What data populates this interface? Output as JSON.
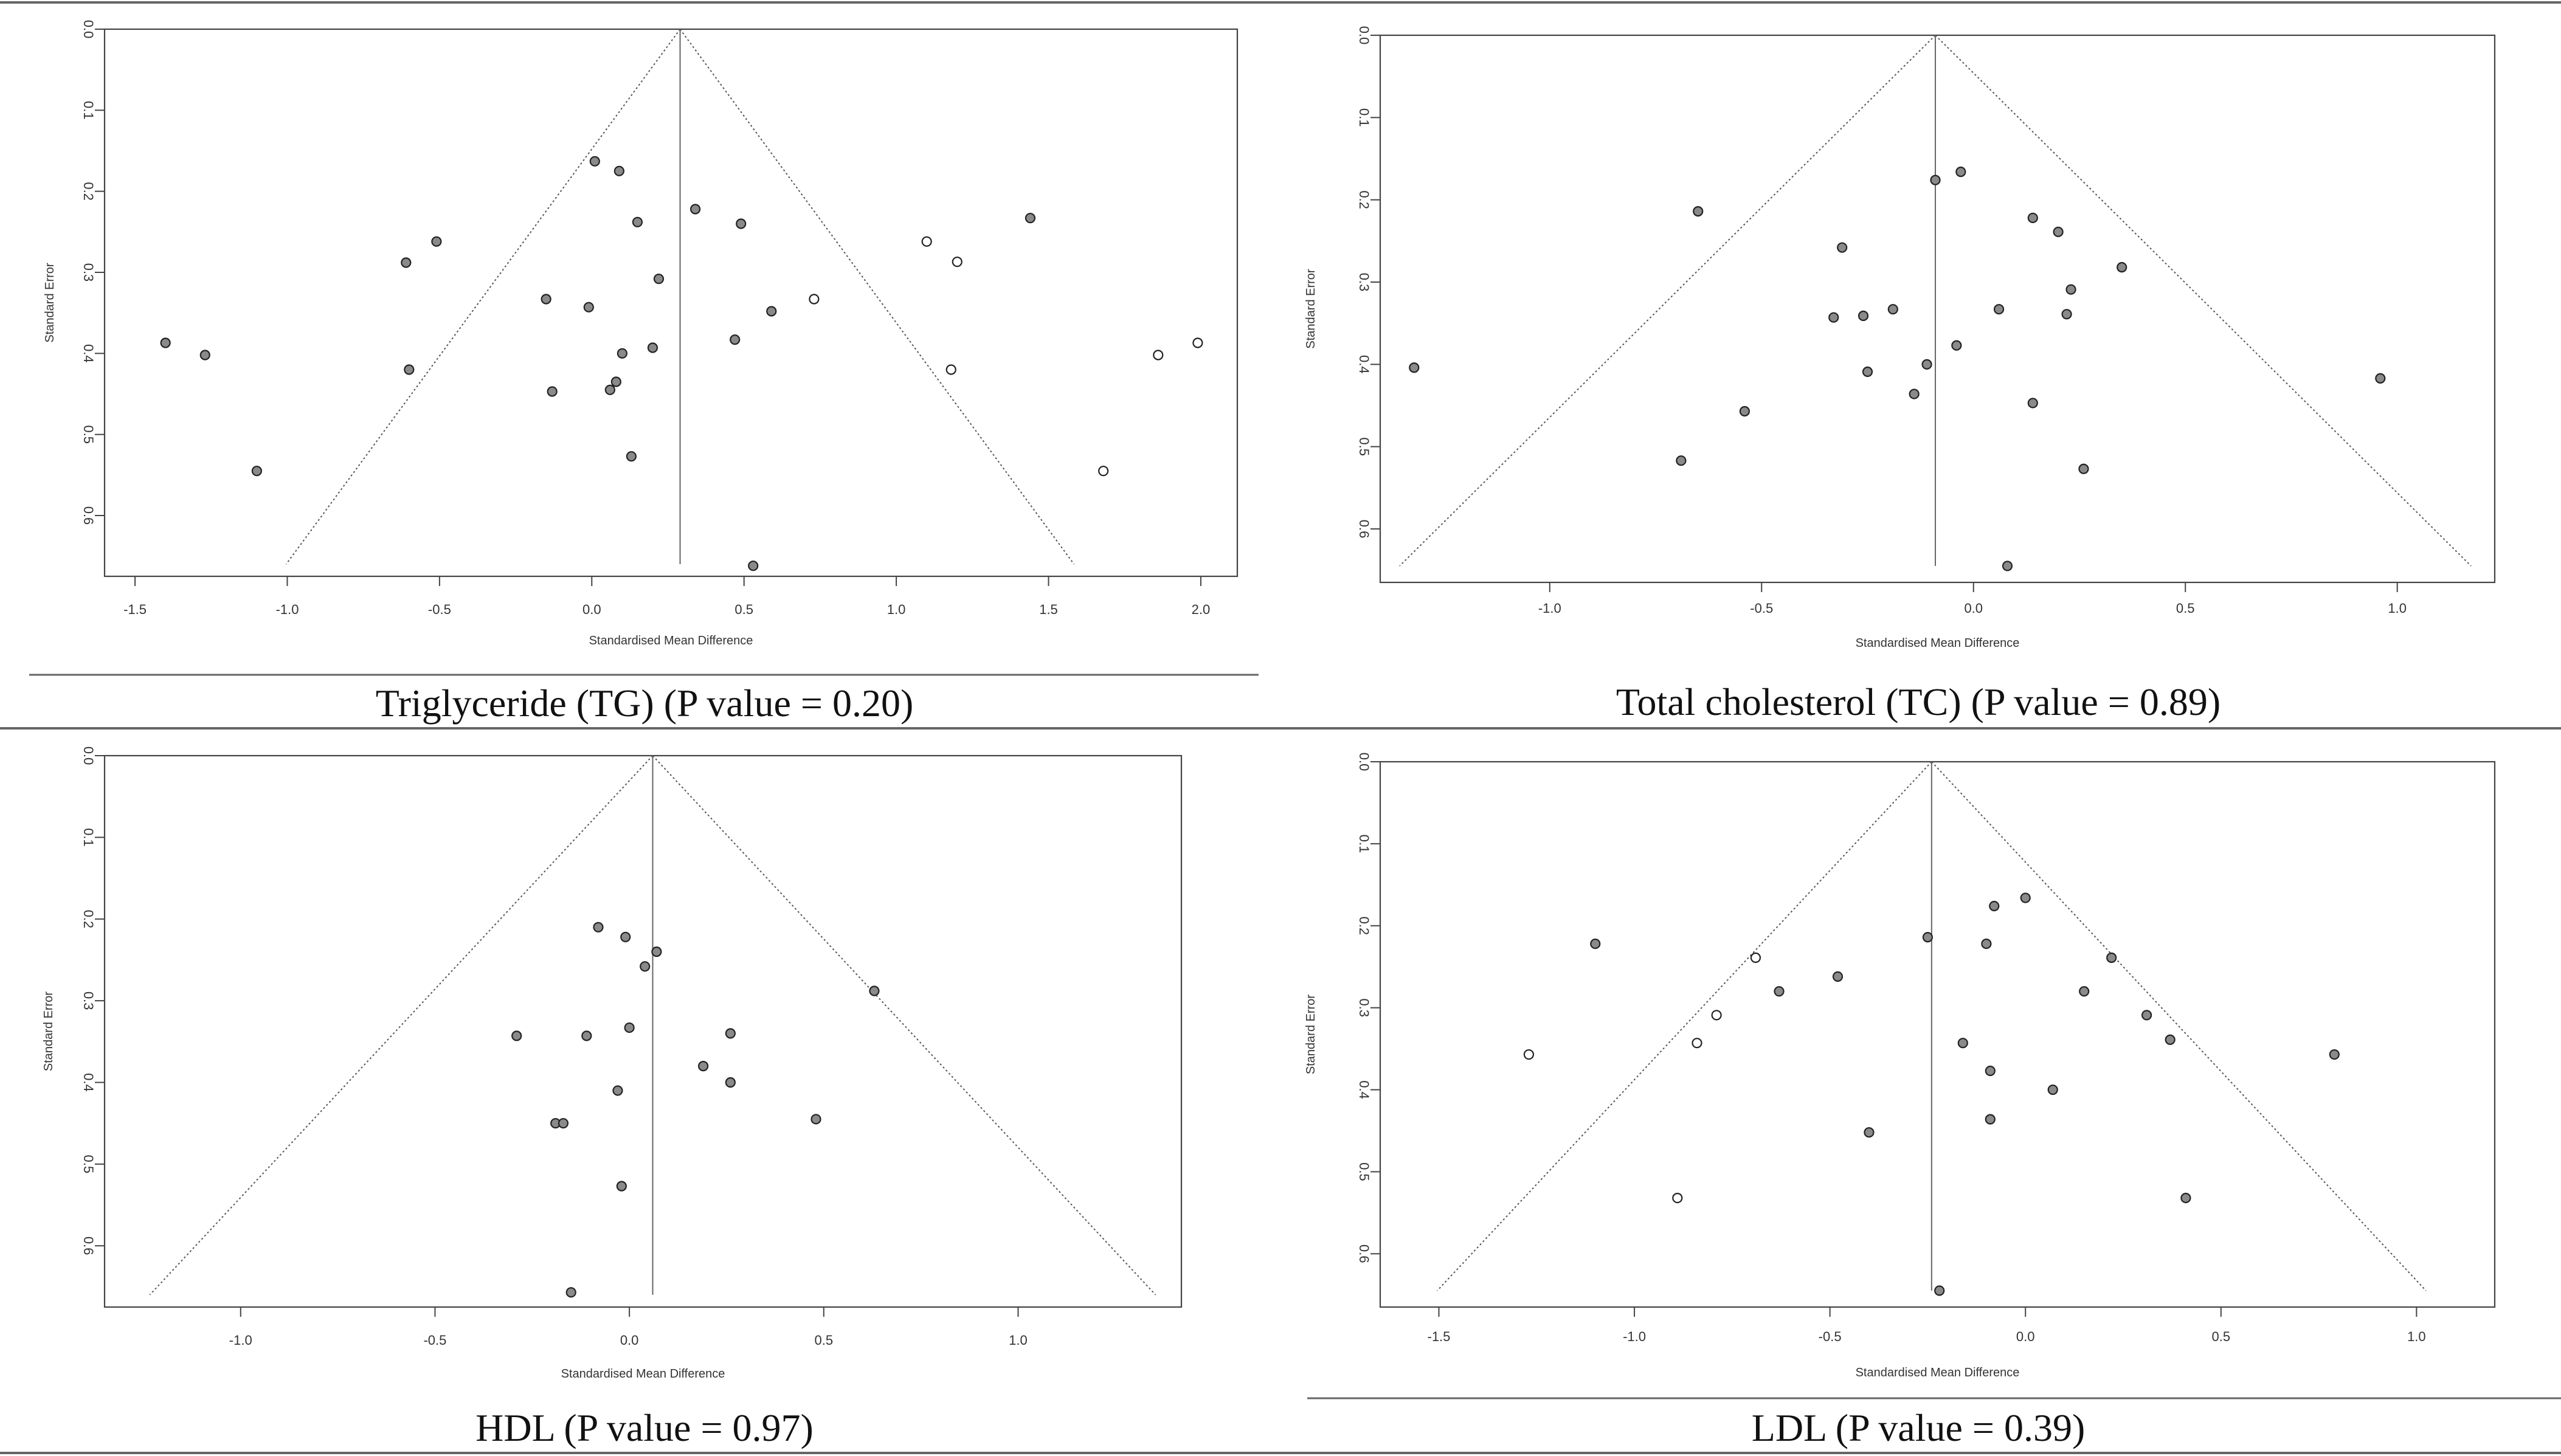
{
  "panels": [
    {
      "caption": "Triglyceride (TG) (P value = 0.20)",
      "chart_data": {
        "type": "scatter",
        "subtype": "funnel",
        "xlabel": "Standardised Mean Difference",
        "ylabel": "Standard Error",
        "xlim": [
          -1.6,
          2.12
        ],
        "ylim": [
          0,
          0.675
        ],
        "y_reversed": true,
        "xticks": [
          -1.5,
          -1.0,
          -0.5,
          0.0,
          0.5,
          1.0,
          1.5,
          2.0
        ],
        "xtick_labels": [
          "-1.5",
          "-1.0",
          "-0.5",
          "0.0",
          "0.5",
          "1.0",
          "1.5",
          "2.0"
        ],
        "yticks": [
          0.0,
          0.1,
          0.2,
          0.3,
          0.4,
          0.5,
          0.6
        ],
        "ytick_labels": [
          "0.0",
          "0.1",
          "0.2",
          "0.3",
          "0.4",
          "0.5",
          "0.6"
        ],
        "center": 0.29,
        "funnel_max_se": 0.66,
        "grid": false,
        "series": [
          {
            "filled": true,
            "points": [
              [
                -1.4,
                0.387
              ],
              [
                -1.27,
                0.402
              ],
              [
                -1.1,
                0.545
              ],
              [
                -0.61,
                0.288
              ],
              [
                -0.6,
                0.42
              ],
              [
                -0.51,
                0.262
              ],
              [
                0.01,
                0.163
              ],
              [
                0.09,
                0.175
              ],
              [
                0.15,
                0.238
              ],
              [
                -0.15,
                0.333
              ],
              [
                -0.01,
                0.343
              ],
              [
                0.22,
                0.308
              ],
              [
                0.34,
                0.222
              ],
              [
                0.49,
                0.24
              ],
              [
                0.59,
                0.348
              ],
              [
                0.1,
                0.4
              ],
              [
                0.2,
                0.393
              ],
              [
                0.47,
                0.383
              ],
              [
                0.08,
                0.435
              ],
              [
                0.06,
                0.445
              ],
              [
                -0.13,
                0.447
              ],
              [
                0.13,
                0.527
              ],
              [
                0.53,
                0.662
              ],
              [
                1.44,
                0.233
              ]
            ]
          },
          {
            "filled": false,
            "points": [
              [
                0.73,
                0.333
              ],
              [
                1.1,
                0.262
              ],
              [
                1.2,
                0.287
              ],
              [
                1.18,
                0.42
              ],
              [
                1.86,
                0.402
              ],
              [
                1.99,
                0.387
              ],
              [
                1.68,
                0.545
              ]
            ]
          }
        ]
      }
    },
    {
      "caption": "Total cholesterol (TC) (P value = 0.89)",
      "chart_data": {
        "type": "scatter",
        "subtype": "funnel",
        "xlabel": "Standardised Mean Difference",
        "ylabel": "Standard Error",
        "xlim": [
          -1.4,
          1.23
        ],
        "ylim": [
          0,
          0.665
        ],
        "y_reversed": true,
        "xticks": [
          -1.0,
          -0.5,
          0.0,
          0.5,
          1.0
        ],
        "xtick_labels": [
          "-1.0",
          "-0.5",
          "0.0",
          "0.5",
          "1.0"
        ],
        "yticks": [
          0.0,
          0.1,
          0.2,
          0.3,
          0.4,
          0.5,
          0.6
        ],
        "ytick_labels": [
          "0.0",
          "0.1",
          "0.2",
          "0.3",
          "0.4",
          "0.5",
          "0.6"
        ],
        "center": -0.09,
        "funnel_max_se": 0.645,
        "grid": false,
        "series": [
          {
            "filled": true,
            "points": [
              [
                -1.32,
                0.404
              ],
              [
                -0.65,
                0.214
              ],
              [
                -0.69,
                0.517
              ],
              [
                -0.54,
                0.457
              ],
              [
                -0.31,
                0.258
              ],
              [
                -0.33,
                0.343
              ],
              [
                -0.26,
                0.341
              ],
              [
                -0.19,
                0.333
              ],
              [
                -0.25,
                0.409
              ],
              [
                -0.14,
                0.436
              ],
              [
                -0.11,
                0.4
              ],
              [
                -0.09,
                0.176
              ],
              [
                -0.03,
                0.166
              ],
              [
                0.06,
                0.333
              ],
              [
                -0.04,
                0.377
              ],
              [
                0.14,
                0.222
              ],
              [
                0.2,
                0.239
              ],
              [
                0.23,
                0.309
              ],
              [
                0.22,
                0.339
              ],
              [
                0.35,
                0.282
              ],
              [
                0.14,
                0.447
              ],
              [
                0.26,
                0.527
              ],
              [
                0.08,
                0.645
              ],
              [
                0.96,
                0.417
              ]
            ]
          }
        ]
      }
    },
    {
      "caption": "HDL (P value = 0.97)",
      "chart_data": {
        "type": "scatter",
        "subtype": "funnel",
        "xlabel": "Standardised Mean Difference",
        "ylabel": "Standard Error",
        "xlim": [
          -1.35,
          1.42
        ],
        "ylim": [
          0,
          0.675
        ],
        "y_reversed": true,
        "xticks": [
          -1.0,
          -0.5,
          0.0,
          0.5,
          1.0
        ],
        "xtick_labels": [
          "-1.0",
          "-0.5",
          "0.0",
          "0.5",
          "1.0"
        ],
        "yticks": [
          0.0,
          0.1,
          0.2,
          0.3,
          0.4,
          0.5,
          0.6
        ],
        "ytick_labels": [
          "0.0",
          "0.1",
          "0.2",
          "0.3",
          "0.4",
          "0.5",
          "0.6"
        ],
        "center": 0.06,
        "funnel_max_se": 0.66,
        "grid": false,
        "series": [
          {
            "filled": true,
            "points": [
              [
                -0.08,
                0.21
              ],
              [
                -0.01,
                0.222
              ],
              [
                0.07,
                0.24
              ],
              [
                0.04,
                0.258
              ],
              [
                0.63,
                0.288
              ],
              [
                -0.29,
                0.343
              ],
              [
                -0.11,
                0.343
              ],
              [
                0.0,
                0.333
              ],
              [
                0.26,
                0.34
              ],
              [
                0.19,
                0.38
              ],
              [
                0.26,
                0.4
              ],
              [
                -0.03,
                0.41
              ],
              [
                -0.19,
                0.45
              ],
              [
                -0.17,
                0.45
              ],
              [
                0.48,
                0.445
              ],
              [
                -0.02,
                0.527
              ],
              [
                -0.15,
                0.657
              ]
            ]
          }
        ]
      }
    },
    {
      "caption": "LDL (P value = 0.39)",
      "chart_data": {
        "type": "scatter",
        "subtype": "funnel",
        "xlabel": "Standardised Mean Difference",
        "ylabel": "Standard Error",
        "xlim": [
          -1.65,
          1.2
        ],
        "ylim": [
          0,
          0.665
        ],
        "y_reversed": true,
        "xticks": [
          -1.5,
          -1.0,
          -0.5,
          0.0,
          0.5,
          1.0
        ],
        "xtick_labels": [
          "-1.5",
          "-1.0",
          "-0.5",
          "0.0",
          "0.5",
          "1.0"
        ],
        "yticks": [
          0.0,
          0.1,
          0.2,
          0.3,
          0.4,
          0.5,
          0.6
        ],
        "ytick_labels": [
          "0.0",
          "0.1",
          "0.2",
          "0.3",
          "0.4",
          "0.5",
          "0.6"
        ],
        "center": -0.24,
        "funnel_max_se": 0.645,
        "grid": false,
        "series": [
          {
            "filled": true,
            "points": [
              [
                -1.1,
                0.222
              ],
              [
                -0.63,
                0.28
              ],
              [
                -0.48,
                0.262
              ],
              [
                -0.25,
                0.214
              ],
              [
                -0.4,
                0.452
              ],
              [
                -0.22,
                0.645
              ],
              [
                -0.1,
                0.222
              ],
              [
                -0.08,
                0.176
              ],
              [
                0.0,
                0.166
              ],
              [
                -0.16,
                0.343
              ],
              [
                -0.09,
                0.377
              ],
              [
                -0.09,
                0.436
              ],
              [
                0.07,
                0.4
              ],
              [
                0.15,
                0.28
              ],
              [
                0.22,
                0.239
              ],
              [
                0.31,
                0.309
              ],
              [
                0.37,
                0.339
              ],
              [
                0.41,
                0.532
              ],
              [
                0.79,
                0.357
              ]
            ]
          },
          {
            "filled": false,
            "points": [
              [
                -1.27,
                0.357
              ],
              [
                -0.84,
                0.343
              ],
              [
                -0.79,
                0.309
              ],
              [
                -0.69,
                0.239
              ],
              [
                -0.89,
                0.532
              ]
            ]
          }
        ]
      }
    }
  ]
}
